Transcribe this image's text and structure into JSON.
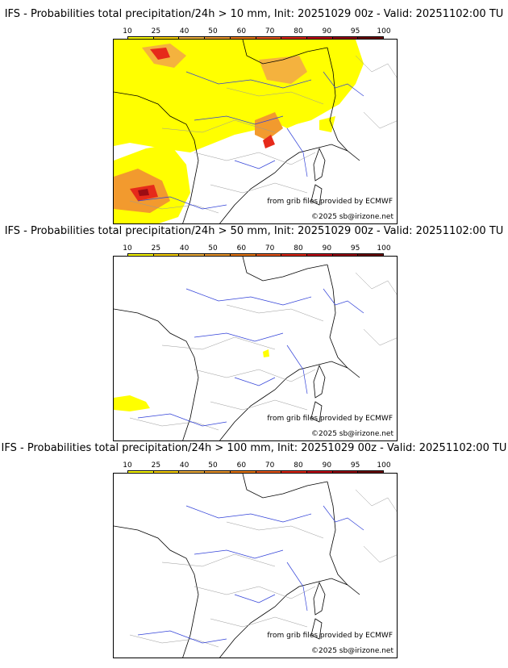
{
  "colorbar": {
    "ticks": [
      "10",
      "25",
      "40",
      "50",
      "60",
      "70",
      "80",
      "90",
      "95",
      "100"
    ],
    "colors": [
      "#ffff00",
      "#ffd700",
      "#f4b23e",
      "#f29a2e",
      "#ef7b18",
      "#f05a1e",
      "#e62a1a",
      "#c8101a",
      "#9c0c14",
      "#6e0408"
    ]
  },
  "panels": [
    {
      "title": "IFS - Probabilities total precipitation/24h > 10 mm, Init: 20251029 00z - Valid: 20251102:00 TU",
      "source_note": "from grib files provided by ECMWF",
      "copyright": "©2025 sb@irizone.net"
    },
    {
      "title": "IFS - Probabilities total precipitation/24h > 50 mm, Init: 20251029 00z - Valid: 20251102:00 TU",
      "source_note": "from grib files provided by ECMWF",
      "copyright": "©2025 sb@irizone.net"
    },
    {
      "title": "IFS - Probabilities total precipitation/24h > 100 mm, Init: 20251029 00z - Valid: 20251102:00 TU",
      "source_note": "from grib files provided by ECMWF",
      "copyright": "©2025 sb@irizone.net"
    }
  ]
}
